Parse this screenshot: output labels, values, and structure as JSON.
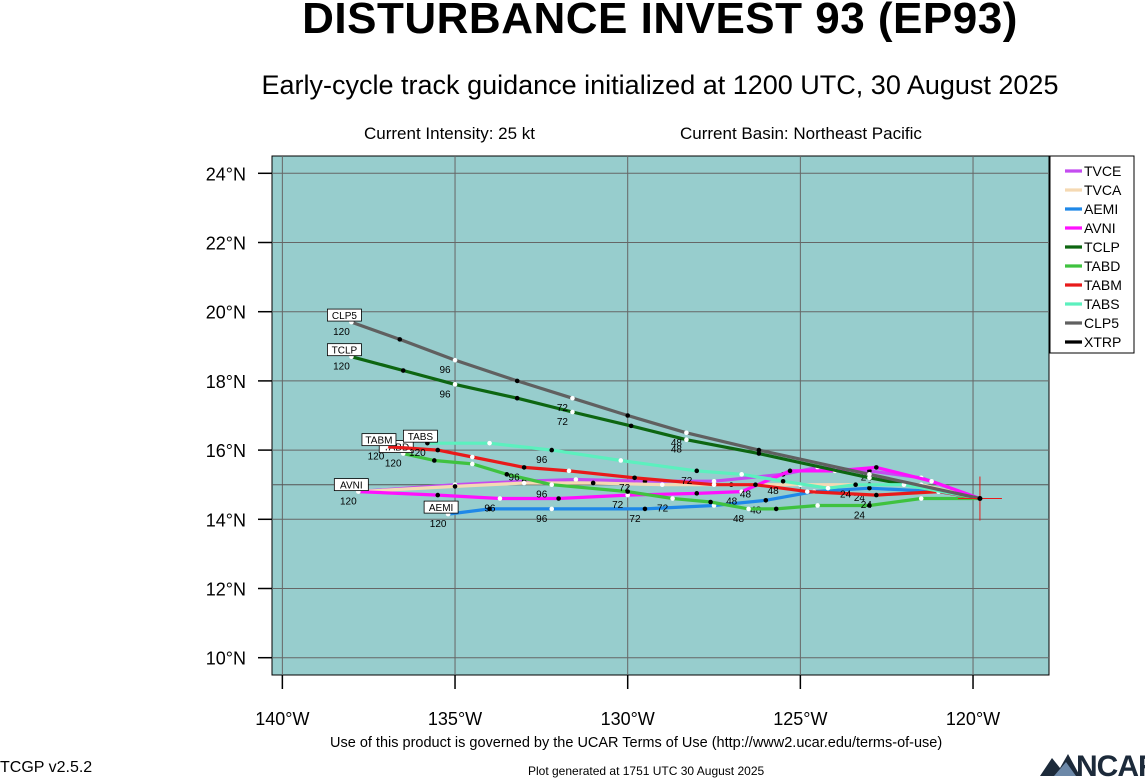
{
  "title": "DISTURBANCE INVEST 93 (EP93)",
  "subtitle": "Early-cycle track guidance initialized at 1200 UTC, 30 August 2025",
  "current_intensity": "Current Intensity: 25 kt",
  "current_basin": "Current Basin: Northeast Pacific",
  "footer_terms": "Use of this product is governed by the UCAR Terms of Use (http://www2.ucar.edu/terms-of-use)",
  "version": "TCGP v2.5.2",
  "plot_generated": "Plot generated at 1751 UTC   30 August 2025",
  "logo_text": "NCAR",
  "colors": {
    "ocean": "#97cdcd",
    "grid": "#666666"
  },
  "chart_data": {
    "type": "map-track",
    "xlim": [
      -140.3,
      -117.8
    ],
    "ylim": [
      9.5,
      24.5
    ],
    "lon_ticks": [
      {
        "v": -140,
        "label": "140°W"
      },
      {
        "v": -135,
        "label": "135°W"
      },
      {
        "v": -130,
        "label": "130°W"
      },
      {
        "v": -125,
        "label": "125°W"
      },
      {
        "v": -120,
        "label": "120°W"
      }
    ],
    "lat_ticks": [
      {
        "v": 24,
        "label": "24°N"
      },
      {
        "v": 22,
        "label": "22°N"
      },
      {
        "v": 20,
        "label": "20°N"
      },
      {
        "v": 18,
        "label": "18°N"
      },
      {
        "v": 16,
        "label": "16°N"
      },
      {
        "v": 14,
        "label": "14°N"
      },
      {
        "v": 12,
        "label": "12°N"
      },
      {
        "v": 10,
        "label": "10°N"
      }
    ],
    "reference_lat": 15.0,
    "initial_position": {
      "lon": -119.8,
      "lat": 14.6
    },
    "series": [
      {
        "name": "TVCE",
        "color": "#c44cf0",
        "points": [
          [
            -119.8,
            14.6
          ],
          [
            -121.5,
            15.2
          ],
          [
            -123.0,
            15.4
          ],
          [
            -124.5,
            15.5
          ],
          [
            -125.5,
            15.3
          ],
          [
            -127.5,
            15.1
          ],
          [
            -129.5,
            15.1
          ],
          [
            -131.5,
            15.15
          ],
          [
            -133.0,
            15.1
          ],
          [
            -135.0,
            15.0
          ],
          [
            -137.8,
            14.8
          ]
        ]
      },
      {
        "name": "TVCA",
        "color": "#f5d9b3",
        "points": [
          [
            -119.8,
            14.6
          ],
          [
            -121.5,
            15.0
          ],
          [
            -123.0,
            15.0
          ],
          [
            -125.0,
            15.0
          ],
          [
            -127.0,
            15.0
          ],
          [
            -129.0,
            15.0
          ],
          [
            -131.0,
            15.05
          ],
          [
            -133.0,
            15.05
          ],
          [
            -135.0,
            14.95
          ],
          [
            -137.8,
            14.8
          ]
        ]
      },
      {
        "name": "AEMI",
        "color": "#1f88e8",
        "points": [
          [
            -119.8,
            14.6
          ],
          [
            -121.0,
            14.8
          ],
          [
            -123.0,
            14.9
          ],
          [
            -124.6,
            14.8
          ],
          [
            -126.0,
            14.55
          ],
          [
            -127.5,
            14.4
          ],
          [
            -129.5,
            14.3
          ],
          [
            -132.2,
            14.3
          ],
          [
            -134.0,
            14.3
          ],
          [
            -135.2,
            14.15
          ]
        ],
        "labels": [
          {
            "t": "24",
            "i": 2
          },
          {
            "t": "48",
            "i": 4
          },
          {
            "t": "72",
            "i": 6
          },
          {
            "t": "96",
            "i": 7
          },
          {
            "t": "120",
            "i": 9
          }
        ],
        "label_box": "AEMI"
      },
      {
        "name": "AVNI",
        "color": "#ff10ff",
        "points": [
          [
            -119.8,
            14.6
          ],
          [
            -121.2,
            15.1
          ],
          [
            -122.8,
            15.5
          ],
          [
            -124.0,
            15.4
          ],
          [
            -125.3,
            15.4
          ],
          [
            -126.7,
            14.8
          ],
          [
            -128.0,
            14.75
          ],
          [
            -130.0,
            14.7
          ],
          [
            -132.0,
            14.6
          ],
          [
            -133.7,
            14.6
          ],
          [
            -135.5,
            14.7
          ],
          [
            -137.8,
            14.8
          ]
        ],
        "labels": [
          {
            "t": "24",
            "i": 2
          },
          {
            "t": "48",
            "i": 5
          },
          {
            "t": "72",
            "i": 7
          },
          {
            "t": "96",
            "i": 9
          },
          {
            "t": "120",
            "i": 11
          }
        ],
        "label_box": "AVNI"
      },
      {
        "name": "TCLP",
        "color": "#0d6611",
        "points": [
          [
            -119.8,
            14.6
          ],
          [
            -123.0,
            15.2
          ],
          [
            -126.2,
            15.9
          ],
          [
            -128.3,
            16.3
          ],
          [
            -129.9,
            16.7
          ],
          [
            -131.6,
            17.1
          ],
          [
            -133.2,
            17.5
          ],
          [
            -135.0,
            17.9
          ],
          [
            -136.5,
            18.3
          ],
          [
            -138.0,
            18.7
          ]
        ],
        "labels": [
          {
            "t": "48",
            "i": 3
          },
          {
            "t": "72",
            "i": 5
          },
          {
            "t": "96",
            "i": 7
          },
          {
            "t": "120",
            "i": 9
          }
        ],
        "label_box": "TCLP"
      },
      {
        "name": "TABD",
        "color": "#3fc23f",
        "points": [
          [
            -119.8,
            14.6
          ],
          [
            -121.5,
            14.6
          ],
          [
            -123.0,
            14.4
          ],
          [
            -124.5,
            14.4
          ],
          [
            -125.7,
            14.3
          ],
          [
            -126.5,
            14.3
          ],
          [
            -127.6,
            14.5
          ],
          [
            -128.7,
            14.6
          ],
          [
            -130.0,
            14.8
          ],
          [
            -132.2,
            15.0
          ],
          [
            -133.5,
            15.3
          ],
          [
            -134.5,
            15.6
          ],
          [
            -135.6,
            15.7
          ],
          [
            -136.5,
            15.9
          ]
        ],
        "labels": [
          {
            "t": "24",
            "i": 2
          },
          {
            "t": "48",
            "i": 5
          },
          {
            "t": "72",
            "i": 7
          },
          {
            "t": "96",
            "i": 9
          },
          {
            "t": "120",
            "i": 13
          }
        ],
        "label_box": "TABD"
      },
      {
        "name": "TABM",
        "color": "#e81a1a",
        "points": [
          [
            -119.8,
            14.6
          ],
          [
            -121.0,
            14.8
          ],
          [
            -122.8,
            14.7
          ],
          [
            -124.8,
            14.8
          ],
          [
            -126.3,
            15.0
          ],
          [
            -127.5,
            15.0
          ],
          [
            -129.8,
            15.2
          ],
          [
            -131.7,
            15.4
          ],
          [
            -133.0,
            15.5
          ],
          [
            -134.5,
            15.8
          ],
          [
            -135.5,
            16.0
          ],
          [
            -137.0,
            16.1
          ]
        ],
        "labels": [
          {
            "t": "24",
            "i": 2
          },
          {
            "t": "48",
            "i": 4
          },
          {
            "t": "72",
            "i": 6
          },
          {
            "t": "96",
            "i": 8
          },
          {
            "t": "120",
            "i": 11
          }
        ],
        "label_box": "TABM"
      },
      {
        "name": "TABS",
        "color": "#5cf0be",
        "points": [
          [
            -119.8,
            14.6
          ],
          [
            -122.0,
            15.0
          ],
          [
            -123.4,
            15.0
          ],
          [
            -124.2,
            14.9
          ],
          [
            -125.5,
            15.1
          ],
          [
            -126.7,
            15.3
          ],
          [
            -128.0,
            15.4
          ],
          [
            -130.2,
            15.7
          ],
          [
            -132.2,
            16.0
          ],
          [
            -134.0,
            16.2
          ],
          [
            -135.8,
            16.2
          ]
        ],
        "labels": [
          {
            "t": "24",
            "i": 2
          },
          {
            "t": "48",
            "i": 4
          },
          {
            "t": "72",
            "i": 6
          },
          {
            "t": "96",
            "i": 8
          },
          {
            "t": "120",
            "i": 10
          }
        ],
        "label_box": "TABS"
      },
      {
        "name": "CLP5",
        "color": "#606060",
        "points": [
          [
            -119.8,
            14.6
          ],
          [
            -123.0,
            15.3
          ],
          [
            -126.2,
            16.0
          ],
          [
            -128.3,
            16.5
          ],
          [
            -130.0,
            17.0
          ],
          [
            -131.6,
            17.5
          ],
          [
            -133.2,
            18.0
          ],
          [
            -135.0,
            18.6
          ],
          [
            -136.6,
            19.2
          ],
          [
            -138.0,
            19.7
          ]
        ],
        "labels": [
          {
            "t": "48",
            "i": 3
          },
          {
            "t": "72",
            "i": 5
          },
          {
            "t": "96",
            "i": 7
          },
          {
            "t": "120",
            "i": 9
          }
        ],
        "label_box": "CLP5"
      },
      {
        "name": "XTRP",
        "color": "#000000",
        "points": [
          [
            -119.8,
            14.6
          ]
        ]
      }
    ]
  }
}
